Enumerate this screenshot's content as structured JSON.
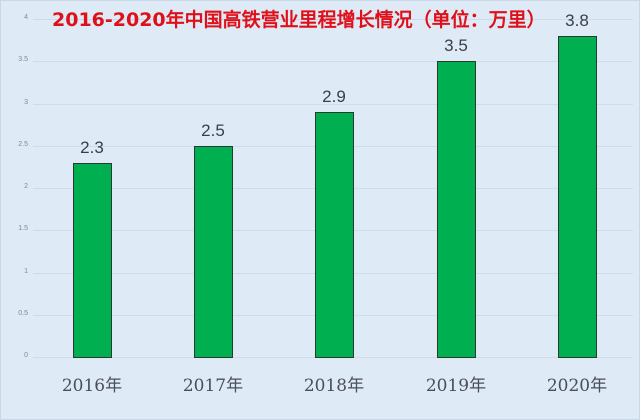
{
  "title": "2016-2020年中国高铁营业里程增长情况（单位：万里）",
  "chart_data": {
    "type": "bar",
    "title": "2016-2020年中国高铁营业里程增长情况（单位：万里）",
    "xlabel": "",
    "ylabel": "",
    "categories": [
      "2016年",
      "2017年",
      "2018年",
      "2019年",
      "2020年"
    ],
    "values": [
      2.3,
      2.5,
      2.9,
      3.5,
      3.8
    ],
    "data_labels": [
      "2.3",
      "2.5",
      "2.9",
      "3.5",
      "3.8"
    ],
    "ylim": [
      0,
      4
    ],
    "yticks": [
      "0",
      "0.5",
      "1",
      "1.5",
      "2",
      "2.5",
      "3",
      "3.5",
      "4"
    ],
    "grid": true,
    "legend": null,
    "colors": {
      "bar": "#00b050",
      "title": "#e0101a",
      "background": "#deeaf6"
    }
  }
}
